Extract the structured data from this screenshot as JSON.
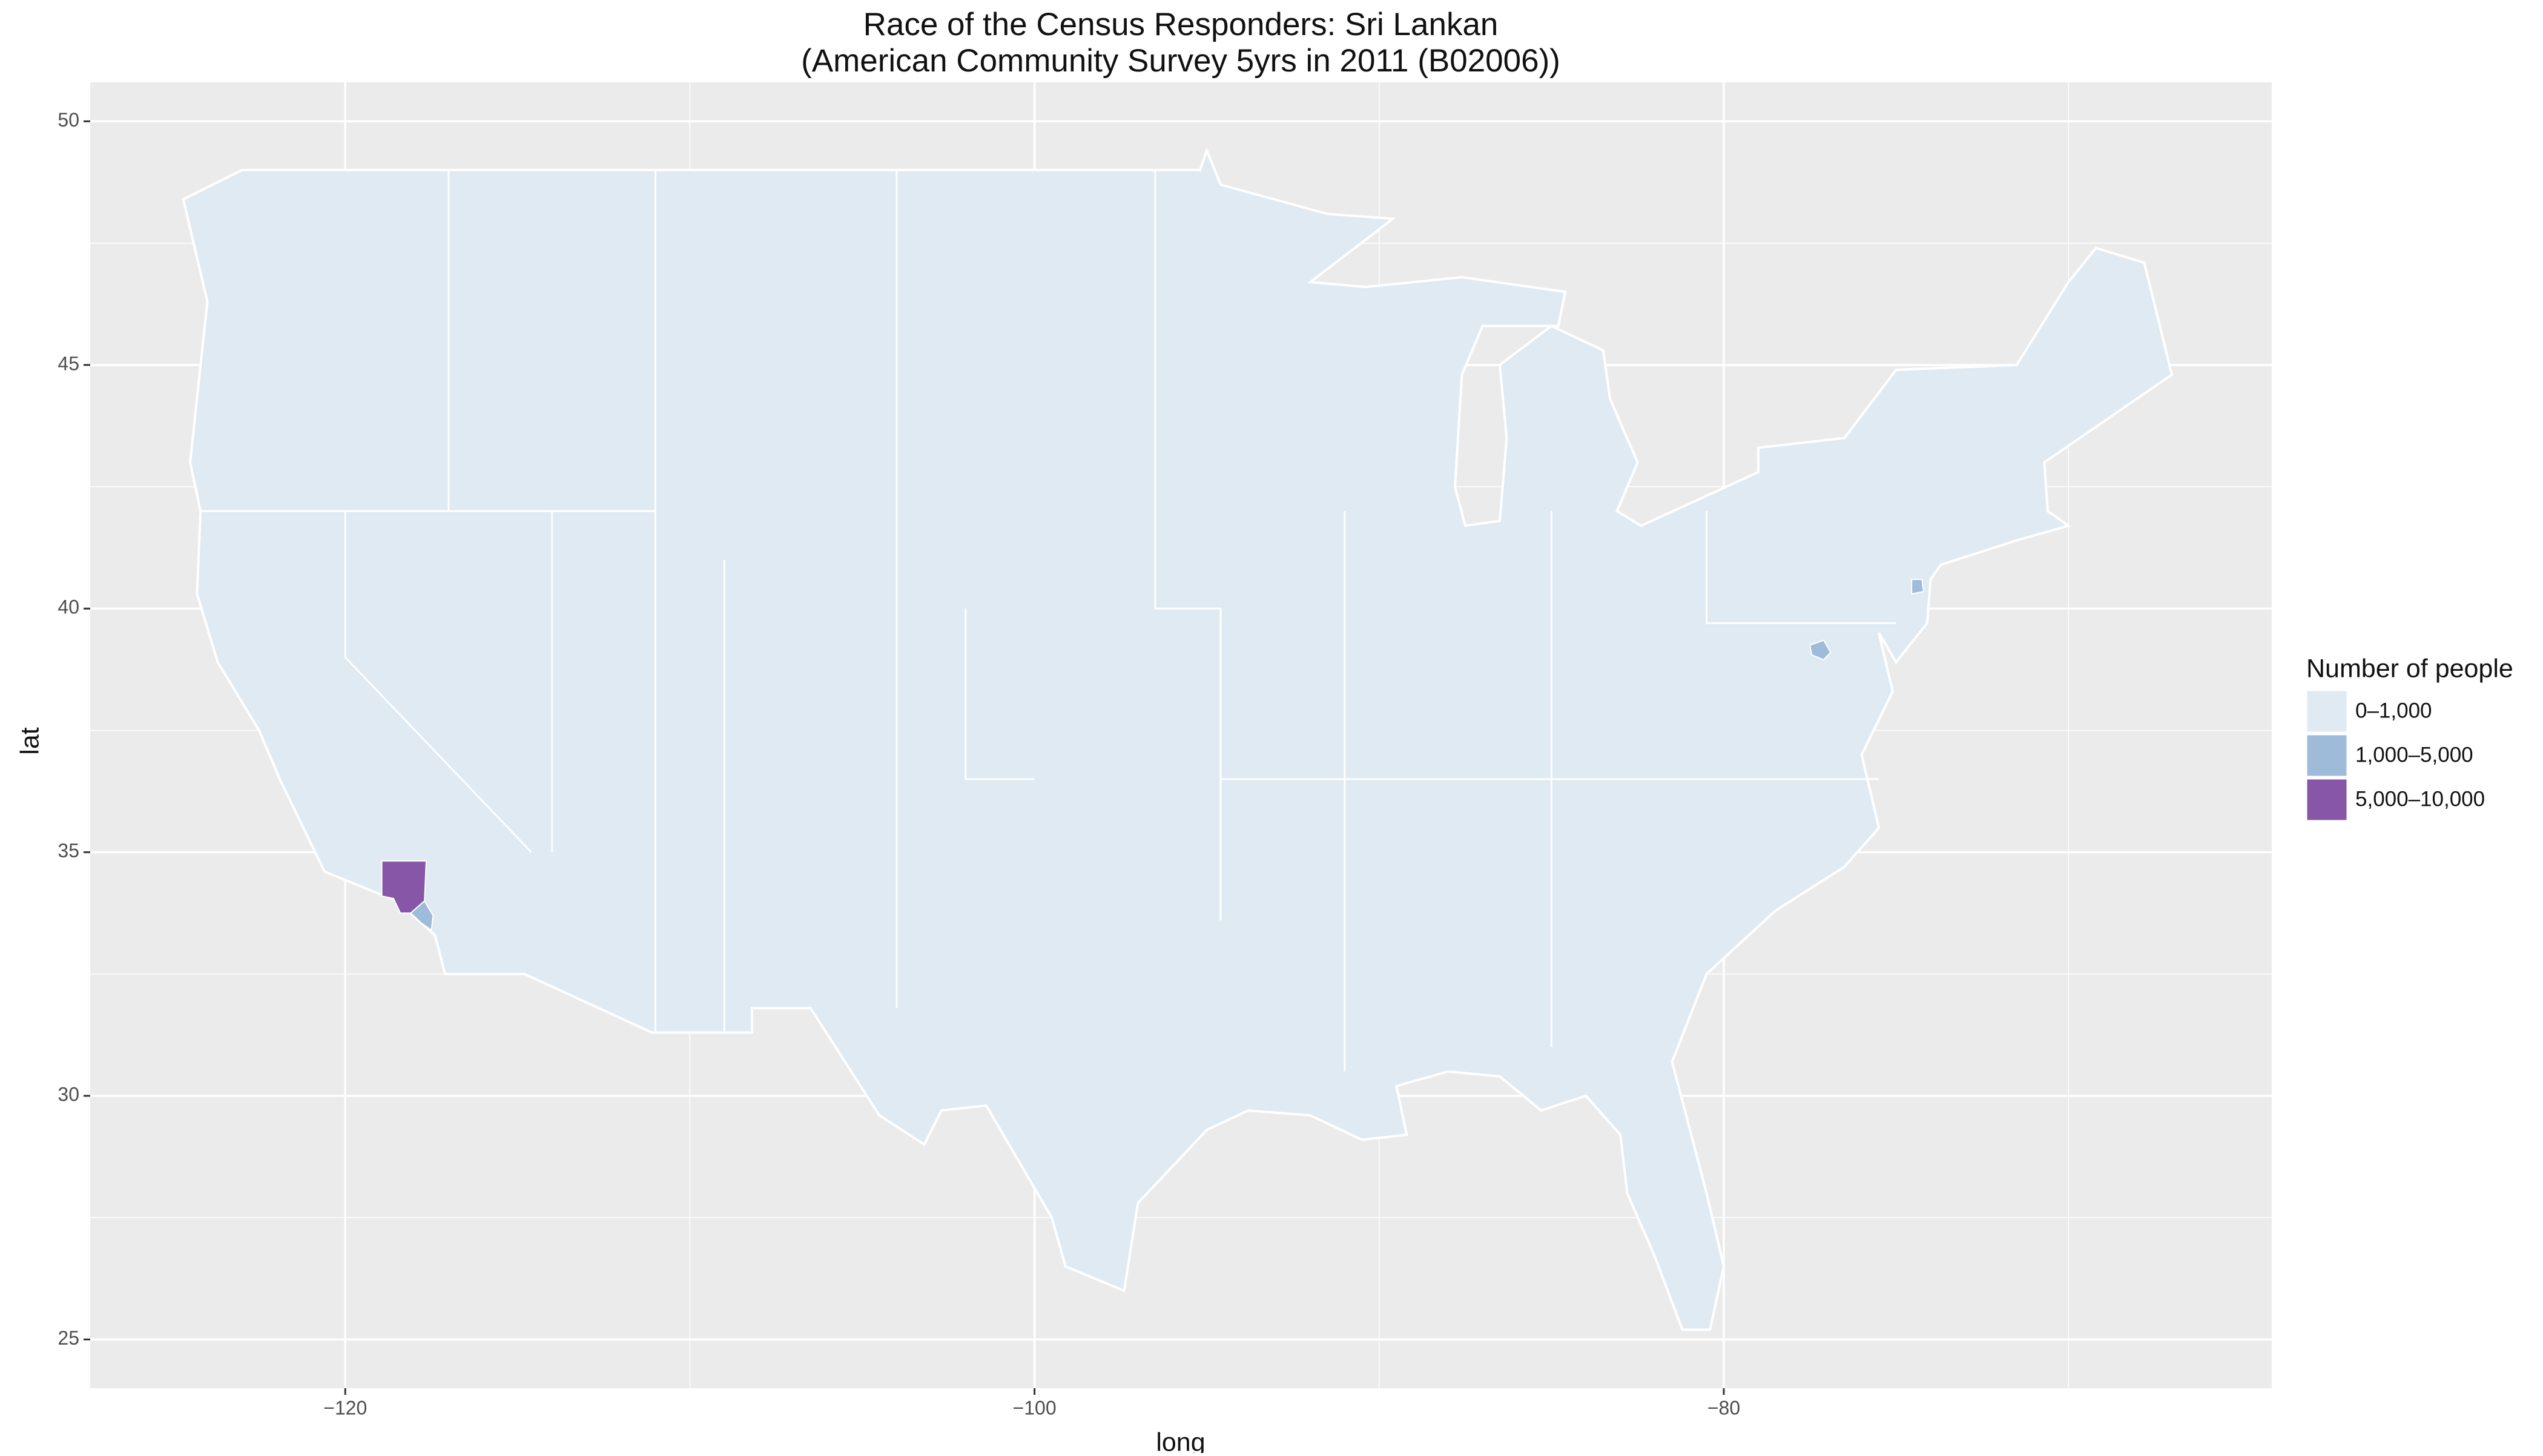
{
  "chart_data": {
    "type": "choropleth",
    "title": "Race of the Census Responders: Sri Lankan",
    "subtitle": "(American Community Survey 5yrs in 2011 (B02006))",
    "x_label": "long",
    "y_label": "lat",
    "xlim": [
      -127.4,
      -64.1
    ],
    "ylim": [
      24.0,
      50.8
    ],
    "xticks": [
      {
        "value": -120,
        "label": "−120"
      },
      {
        "value": -100,
        "label": "−100"
      },
      {
        "value": -80,
        "label": "−80"
      }
    ],
    "yticks": [
      25,
      30,
      35,
      40,
      45,
      50
    ],
    "grid": true,
    "legend": {
      "title": "Number of people",
      "position": "right",
      "items": [
        {
          "label": "0–1,000",
          "color": "#dfeaf3"
        },
        {
          "label": "1,000–5,000",
          "color": "#9ebcda"
        },
        {
          "label": "5,000–10,000",
          "color": "#8856a7"
        }
      ]
    }
  }
}
